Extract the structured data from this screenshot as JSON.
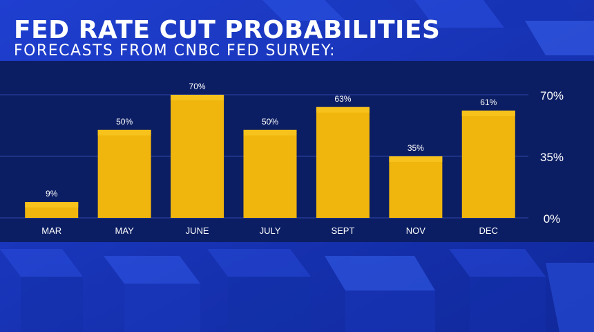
{
  "colors": {
    "background": "#1634b8",
    "panel": "#0c1e63",
    "bar": "#f0b60e",
    "bar_cap": "#f6c21b",
    "text": "#ffffff",
    "gridline": "#2e47a8"
  },
  "chart_data": {
    "type": "bar",
    "title": "FED RATE CUT PROBABILITIES",
    "subtitle": "FORECASTS FROM CNBC FED SURVEY:",
    "categories": [
      "MAR",
      "MAY",
      "JUNE",
      "JULY",
      "SEPT",
      "NOV",
      "DEC"
    ],
    "values": [
      9,
      50,
      70,
      50,
      63,
      35,
      61
    ],
    "value_labels": [
      "9%",
      "50%",
      "70%",
      "50%",
      "63%",
      "35%",
      "61%"
    ],
    "y_ticks": [
      0,
      35,
      70
    ],
    "y_tick_labels": [
      "0%",
      "35%",
      "70%"
    ],
    "ylim": [
      0,
      70
    ],
    "xlabel": "",
    "ylabel": "",
    "grid": true,
    "y_axis_position": "right",
    "legend": "none"
  }
}
